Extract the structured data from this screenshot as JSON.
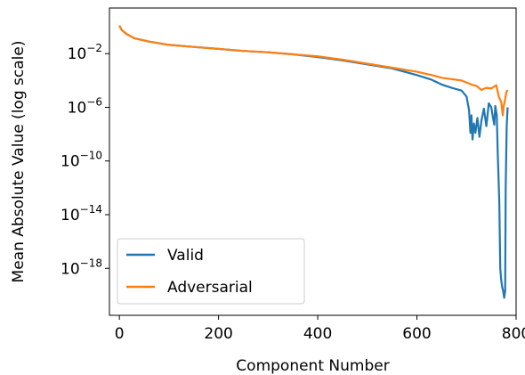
{
  "chart_data": {
    "type": "line",
    "title": "",
    "xlabel": "Component Number",
    "ylabel": "Mean Absolute Value (log scale)",
    "y_scale": "log",
    "xlim": [
      -20,
      800
    ],
    "ylim_log10": [
      -21.5,
      1.4
    ],
    "x_ticks": [
      0,
      200,
      400,
      600,
      800
    ],
    "y_ticks_log10": [
      -2,
      -6,
      -10,
      -14,
      -18
    ],
    "y_tick_base": "10",
    "grid": false,
    "legend_position": "lower-left",
    "series": [
      {
        "name": "Valid",
        "color": "#1f77b4",
        "points_log10": [
          [
            0,
            0.1
          ],
          [
            5,
            -0.25
          ],
          [
            15,
            -0.55
          ],
          [
            30,
            -0.85
          ],
          [
            60,
            -1.1
          ],
          [
            100,
            -1.35
          ],
          [
            150,
            -1.5
          ],
          [
            200,
            -1.65
          ],
          [
            250,
            -1.8
          ],
          [
            300,
            -1.9
          ],
          [
            350,
            -2.05
          ],
          [
            400,
            -2.25
          ],
          [
            450,
            -2.5
          ],
          [
            500,
            -2.8
          ],
          [
            550,
            -3.1
          ],
          [
            600,
            -3.6
          ],
          [
            630,
            -3.95
          ],
          [
            650,
            -4.3
          ],
          [
            670,
            -4.55
          ],
          [
            690,
            -4.75
          ],
          [
            700,
            -5.2
          ],
          [
            705,
            -6.2
          ],
          [
            708,
            -7.9
          ],
          [
            710,
            -6.6
          ],
          [
            712,
            -8.4
          ],
          [
            715,
            -7.2
          ],
          [
            718,
            -7.9
          ],
          [
            722,
            -6.8
          ],
          [
            726,
            -8.2
          ],
          [
            730,
            -7.0
          ],
          [
            735,
            -6.1
          ],
          [
            740,
            -7.4
          ],
          [
            745,
            -5.7
          ],
          [
            750,
            -6.0
          ],
          [
            753,
            -6.7
          ],
          [
            756,
            -7.3
          ],
          [
            758,
            -5.9
          ],
          [
            761,
            -6.6
          ],
          [
            763,
            -9.5
          ],
          [
            766,
            -13.0
          ],
          [
            768,
            -18.0
          ],
          [
            770,
            -18.9
          ],
          [
            772,
            -19.4
          ],
          [
            774,
            -19.7
          ],
          [
            776,
            -20.2
          ],
          [
            778,
            -19.7
          ],
          [
            779,
            -12.0
          ],
          [
            780,
            -9.5
          ],
          [
            781,
            -7.5
          ],
          [
            782,
            -6.6
          ],
          [
            783,
            -6.0
          ]
        ]
      },
      {
        "name": "Adversarial",
        "color": "#ff7f0e",
        "points_log10": [
          [
            0,
            0.1
          ],
          [
            5,
            -0.25
          ],
          [
            15,
            -0.55
          ],
          [
            30,
            -0.85
          ],
          [
            60,
            -1.1
          ],
          [
            100,
            -1.35
          ],
          [
            150,
            -1.5
          ],
          [
            200,
            -1.65
          ],
          [
            250,
            -1.8
          ],
          [
            300,
            -1.9
          ],
          [
            350,
            -2.05
          ],
          [
            400,
            -2.2
          ],
          [
            450,
            -2.45
          ],
          [
            500,
            -2.75
          ],
          [
            550,
            -3.05
          ],
          [
            600,
            -3.35
          ],
          [
            630,
            -3.6
          ],
          [
            650,
            -3.8
          ],
          [
            670,
            -3.9
          ],
          [
            690,
            -4.0
          ],
          [
            700,
            -4.15
          ],
          [
            710,
            -4.3
          ],
          [
            720,
            -4.4
          ],
          [
            730,
            -4.7
          ],
          [
            740,
            -4.55
          ],
          [
            750,
            -4.6
          ],
          [
            760,
            -4.35
          ],
          [
            765,
            -5.2
          ],
          [
            770,
            -5.6
          ],
          [
            773,
            -6.6
          ],
          [
            775,
            -5.9
          ],
          [
            778,
            -5.4
          ],
          [
            780,
            -4.9
          ],
          [
            783,
            -4.7
          ]
        ]
      }
    ]
  }
}
